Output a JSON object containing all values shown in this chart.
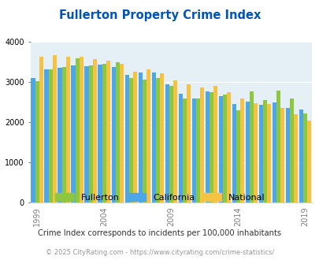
{
  "title": "Fullerton Property Crime Index",
  "years": [
    1999,
    2000,
    2001,
    2002,
    2003,
    2004,
    2005,
    2006,
    2007,
    2008,
    2009,
    2010,
    2011,
    2012,
    2013,
    2014,
    2015,
    2016,
    2017,
    2018,
    2019
  ],
  "fullerton": [
    3020,
    3310,
    3380,
    3590,
    3410,
    3440,
    3480,
    3090,
    3060,
    3100,
    2910,
    2580,
    2580,
    2750,
    2690,
    2300,
    2760,
    2540,
    2780,
    2590,
    2210
  ],
  "california": [
    3100,
    3310,
    3350,
    3410,
    3390,
    3430,
    3370,
    3170,
    3230,
    3240,
    2940,
    2700,
    2590,
    2770,
    2650,
    2460,
    2510,
    2440,
    2500,
    2360,
    2320
  ],
  "national": [
    3620,
    3660,
    3620,
    3630,
    3570,
    3530,
    3440,
    3260,
    3310,
    3210,
    3030,
    2940,
    2860,
    2900,
    2750,
    2590,
    2480,
    2460,
    2360,
    2200,
    2050
  ],
  "fullerton_color": "#8dc63f",
  "california_color": "#4da6e8",
  "national_color": "#f5c242",
  "plot_bg": "#e4f0f6",
  "title_color": "#0055bb",
  "subtitle": "Crime Index corresponds to incidents per 100,000 inhabitants",
  "footer": "© 2025 CityRating.com - https://www.cityrating.com/crime-statistics/",
  "ylim": [
    0,
    4000
  ],
  "yticks": [
    0,
    1000,
    2000,
    3000,
    4000
  ],
  "xtick_years": [
    1999,
    2004,
    2009,
    2014,
    2019
  ]
}
